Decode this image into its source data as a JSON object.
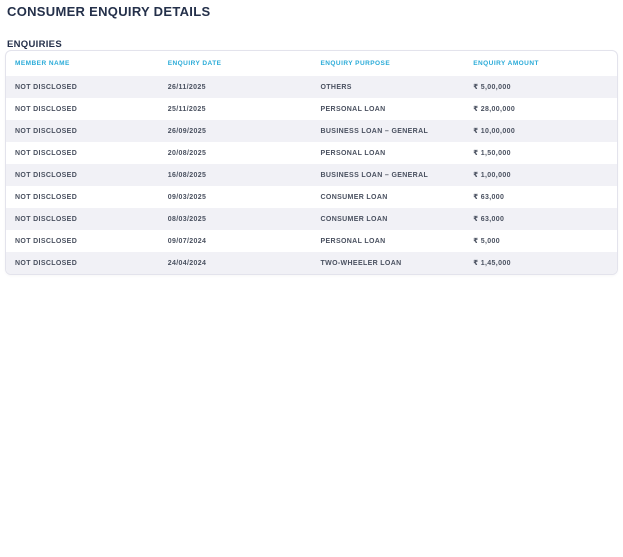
{
  "page": {
    "title": "CONSUMER ENQUIRY DETAILS",
    "section_title": "ENQUIRIES"
  },
  "colors": {
    "heading_text": "#24304a",
    "table_header_text": "#2aabd8",
    "cell_text": "#4a5160",
    "row_alt_bg": "#f1f1f6",
    "card_border": "#e3e3ec",
    "page_bg": "#ffffff"
  },
  "table": {
    "columns": [
      {
        "key": "member_name",
        "label": "MEMBER NAME"
      },
      {
        "key": "enquiry_date",
        "label": "ENQUIRY DATE"
      },
      {
        "key": "enquiry_purpose",
        "label": "ENQUIRY PURPOSE"
      },
      {
        "key": "enquiry_amount",
        "label": "ENQUIRY AMOUNT"
      }
    ],
    "rows": [
      {
        "member_name": "NOT DISCLOSED",
        "enquiry_date": "26/11/2025",
        "enquiry_purpose": "OTHERS",
        "enquiry_amount": "₹ 5,00,000"
      },
      {
        "member_name": "NOT DISCLOSED",
        "enquiry_date": "25/11/2025",
        "enquiry_purpose": "PERSONAL LOAN",
        "enquiry_amount": "₹ 28,00,000"
      },
      {
        "member_name": "NOT DISCLOSED",
        "enquiry_date": "26/09/2025",
        "enquiry_purpose": "BUSINESS LOAN – GENERAL",
        "enquiry_amount": "₹ 10,00,000"
      },
      {
        "member_name": "NOT DISCLOSED",
        "enquiry_date": "20/08/2025",
        "enquiry_purpose": "PERSONAL LOAN",
        "enquiry_amount": "₹ 1,50,000"
      },
      {
        "member_name": "NOT DISCLOSED",
        "enquiry_date": "16/08/2025",
        "enquiry_purpose": "BUSINESS LOAN – GENERAL",
        "enquiry_amount": "₹ 1,00,000"
      },
      {
        "member_name": "NOT DISCLOSED",
        "enquiry_date": "09/03/2025",
        "enquiry_purpose": "CONSUMER LOAN",
        "enquiry_amount": "₹ 63,000"
      },
      {
        "member_name": "NOT DISCLOSED",
        "enquiry_date": "08/03/2025",
        "enquiry_purpose": "CONSUMER LOAN",
        "enquiry_amount": "₹ 63,000"
      },
      {
        "member_name": "NOT DISCLOSED",
        "enquiry_date": "09/07/2024",
        "enquiry_purpose": "PERSONAL LOAN",
        "enquiry_amount": "₹ 5,000"
      },
      {
        "member_name": "NOT DISCLOSED",
        "enquiry_date": "24/04/2024",
        "enquiry_purpose": "TWO-WHEELER LOAN",
        "enquiry_amount": "₹ 1,45,000"
      }
    ]
  }
}
